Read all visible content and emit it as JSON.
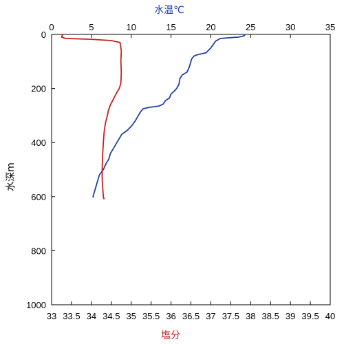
{
  "chart_data": {
    "type": "line",
    "y_axis": {
      "label": "水深m",
      "ticks": [
        0,
        200,
        400,
        600,
        800,
        1000
      ],
      "range": [
        0,
        1000
      ],
      "inverted": true
    },
    "x_top": {
      "label": "水温℃",
      "ticks": [
        0,
        5,
        10,
        15,
        20,
        25,
        30,
        35
      ],
      "range": [
        0,
        35
      ],
      "color": "#1f3fa8"
    },
    "x_bottom": {
      "label": "塩分",
      "ticks": [
        33,
        33.5,
        34,
        34.5,
        35,
        35.5,
        36,
        36.5,
        37,
        37.5,
        38,
        38.5,
        39,
        39.5,
        40
      ],
      "range": [
        33,
        40
      ],
      "color": "#c81e1e"
    },
    "series": [
      {
        "axis": "x_top",
        "color": "#1f3fa8",
        "points": [
          [
            24.3,
            0
          ],
          [
            24.2,
            5
          ],
          [
            23.5,
            10
          ],
          [
            21.2,
            15
          ],
          [
            20.6,
            25
          ],
          [
            20.0,
            50
          ],
          [
            19.4,
            68
          ],
          [
            18.3,
            75
          ],
          [
            17.9,
            80
          ],
          [
            17.6,
            90
          ],
          [
            17.5,
            100
          ],
          [
            17.3,
            120
          ],
          [
            17.0,
            140
          ],
          [
            16.4,
            150
          ],
          [
            16.1,
            165
          ],
          [
            16.0,
            185
          ],
          [
            15.7,
            200
          ],
          [
            15.4,
            210
          ],
          [
            15.0,
            220
          ],
          [
            14.8,
            235
          ],
          [
            14.3,
            245
          ],
          [
            14.0,
            258
          ],
          [
            13.5,
            265
          ],
          [
            12.2,
            270
          ],
          [
            11.5,
            275
          ],
          [
            11.2,
            285
          ],
          [
            10.9,
            300
          ],
          [
            10.5,
            320
          ],
          [
            10.0,
            340
          ],
          [
            9.5,
            355
          ],
          [
            8.8,
            370
          ],
          [
            8.5,
            385
          ],
          [
            8.2,
            400
          ],
          [
            7.8,
            420
          ],
          [
            7.4,
            440
          ],
          [
            7.2,
            460
          ],
          [
            6.8,
            480
          ],
          [
            6.5,
            500
          ],
          [
            6.0,
            520
          ],
          [
            5.8,
            540
          ],
          [
            5.6,
            560
          ],
          [
            5.4,
            580
          ],
          [
            5.2,
            600
          ],
          [
            5.3,
            603
          ]
        ]
      },
      {
        "axis": "x_bottom",
        "color": "#c81e1e",
        "points": [
          [
            33.28,
            0
          ],
          [
            33.25,
            10
          ],
          [
            33.35,
            15
          ],
          [
            34.0,
            18
          ],
          [
            34.5,
            23
          ],
          [
            34.72,
            30
          ],
          [
            34.75,
            60
          ],
          [
            34.74,
            100
          ],
          [
            34.75,
            140
          ],
          [
            34.74,
            180
          ],
          [
            34.7,
            200
          ],
          [
            34.62,
            220
          ],
          [
            34.55,
            240
          ],
          [
            34.48,
            260
          ],
          [
            34.43,
            280
          ],
          [
            34.4,
            300
          ],
          [
            34.35,
            330
          ],
          [
            34.32,
            360
          ],
          [
            34.3,
            400
          ],
          [
            34.28,
            450
          ],
          [
            34.27,
            500
          ],
          [
            34.27,
            530
          ],
          [
            34.28,
            560
          ],
          [
            34.3,
            600
          ],
          [
            34.32,
            610
          ]
        ]
      }
    ]
  }
}
